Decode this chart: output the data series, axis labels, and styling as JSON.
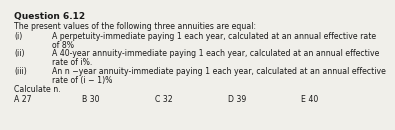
{
  "title": "Question 6.12",
  "subtitle": "The present values of the following three annuities are equal:",
  "items": [
    [
      "(i)",
      "A perpetuity-immediate paying 1 each year, calculated at an annual effective rate",
      "of 8%"
    ],
    [
      "(ii)",
      "A 40-year annuity-immediate paying 1 each year, calculated at an annual effective",
      "rate of i%."
    ],
    [
      "(iii)",
      "An n −year annuity-immediate paying 1 each year, calculated at an annual effective",
      "rate of (i − 1)%"
    ]
  ],
  "calculate": "Calculate n.",
  "answers": [
    "A 27",
    "B 30",
    "C 32",
    "D 39",
    "E 40"
  ],
  "bg_color": "#f0efea",
  "text_color": "#1a1a1a",
  "title_fontsize": 6.5,
  "body_fontsize": 5.6
}
